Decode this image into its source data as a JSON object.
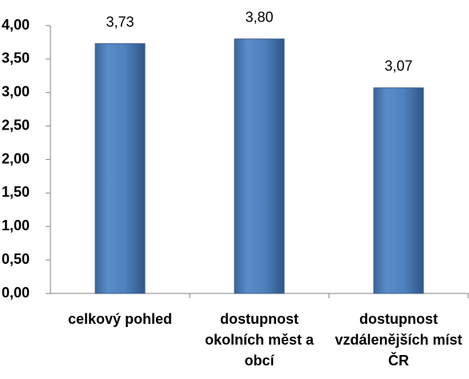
{
  "chart_data": {
    "type": "bar",
    "categories": [
      "celkový pohled",
      "dostupnost okolních měst a obcí",
      "dostupnost vzdálenějších míst ČR"
    ],
    "values": [
      3.73,
      3.8,
      3.07
    ],
    "value_labels": [
      "3,73",
      "3,80",
      "3,07"
    ],
    "color": "#4f81bd",
    "ylim": [
      0,
      4
    ],
    "yticks": [
      {
        "value": 0,
        "label": "0,00"
      },
      {
        "value": 0.5,
        "label": "0,50"
      },
      {
        "value": 1,
        "label": "1,00"
      },
      {
        "value": 1.5,
        "label": "1,50"
      },
      {
        "value": 2,
        "label": "2,00"
      },
      {
        "value": 2.5,
        "label": "2,50"
      },
      {
        "value": 3,
        "label": "3,00"
      },
      {
        "value": 3.5,
        "label": "3,50"
      },
      {
        "value": 4,
        "label": "4,00"
      }
    ]
  }
}
